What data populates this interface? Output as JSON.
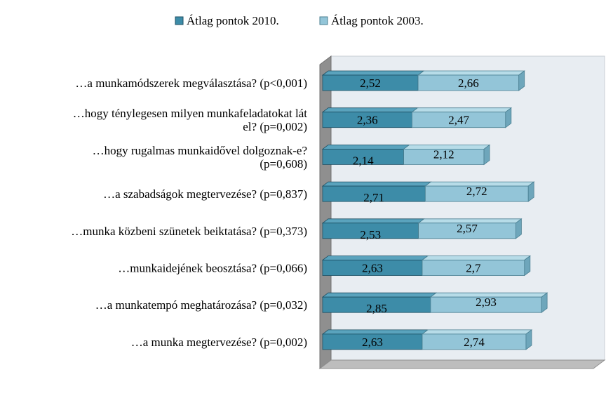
{
  "chart_data": {
    "type": "bar",
    "orientation": "horizontal",
    "stacked": true,
    "legend_position": "top",
    "categories": [
      [
        "…a munkamódszerek megválasztása? (p<0,001)"
      ],
      [
        "…hogy ténylegesen milyen munkafeladatokat lát",
        "el? (p=0,002)"
      ],
      [
        "…hogy rugalmas munkaidővel dolgoznak-e?",
        "(p=0,608)"
      ],
      [
        "…a szabadságok megtervezése? (p=0,837)"
      ],
      [
        "…munka közbeni szünetek beiktatása? (p=0,373)"
      ],
      [
        "…munkaidejének beosztása? (p=0,066)"
      ],
      [
        "…a munkatempó meghatározása? (p=0,032)"
      ],
      [
        "…a munka megtervezése? (p=0,002)"
      ]
    ],
    "series": [
      {
        "name": "Átlag pontok 2010.",
        "color": "#3d8ca8",
        "values": [
          2.52,
          2.36,
          2.14,
          2.71,
          2.53,
          2.63,
          2.85,
          2.63
        ],
        "labels": [
          "2,52",
          "2,36",
          "2,14",
          "2,71",
          "2,53",
          "2,63",
          "2,85",
          "2,63"
        ]
      },
      {
        "name": "Átlag pontok 2003.",
        "color": "#93c5d8",
        "values": [
          2.66,
          2.47,
          2.12,
          2.72,
          2.57,
          2.7,
          2.93,
          2.74
        ],
        "labels": [
          "2,66",
          "2,47",
          "2,12",
          "2,72",
          "2,57",
          "2,7",
          "2,93",
          "2,74"
        ]
      }
    ],
    "grid": false
  }
}
